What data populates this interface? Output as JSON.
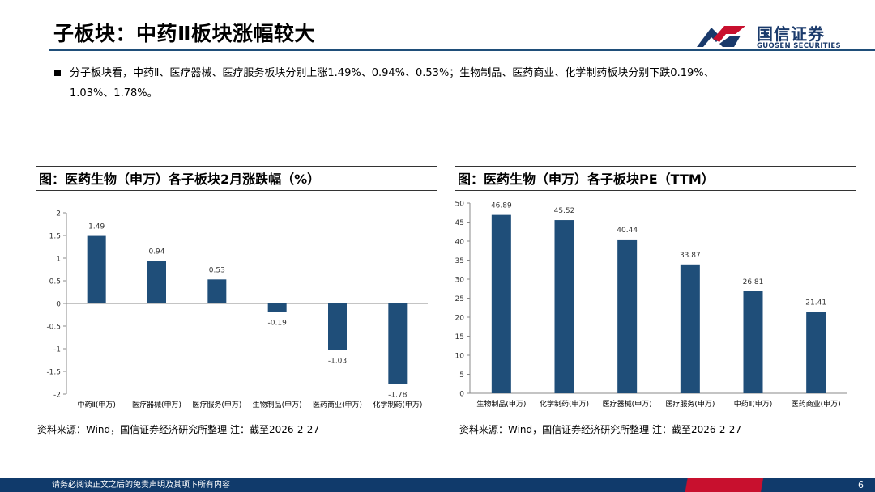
{
  "header": {
    "title": "子板块：中药Ⅱ板块涨幅较大",
    "logo_cn": "国信证券",
    "logo_en": "GUOSEN SECURITIES"
  },
  "summary": {
    "line1": "分子板块看，中药Ⅱ、医疗器械、医疗服务板块分别上涨1.49%、0.94%、0.53%；生物制品、医药商业、化学制药板块分别下跌0.19%、",
    "line2": "1.03%、1.78%。"
  },
  "left_panel": {
    "heading": "图：医药生物（申万）各子板块2月涨跌幅（%）",
    "source": "资料来源：Wind，国信证券经济研究所整理  注：截至2026-2-27"
  },
  "right_panel": {
    "heading": "图：医药生物（申万）各子板块PE（TTM）",
    "source": "资料来源：Wind，国信证券经济研究所整理  注：截至2026-2-27"
  },
  "footer": {
    "disclaimer": "请务必阅读正文之后的免责声明及其项下所有内容",
    "page": "6"
  },
  "colors": {
    "bar": "#1f4e79",
    "accent_red": "#c8102e",
    "navy": "#103a6b"
  },
  "chart_data": [
    {
      "type": "bar",
      "title": "医药生物（申万）各子板块2月涨跌幅（%）",
      "categories": [
        "中药Ⅱ(申万)",
        "医疗器械(申万)",
        "医疗服务(申万)",
        "生物制品(申万)",
        "医药商业(申万)",
        "化学制药(申万)"
      ],
      "values": [
        1.49,
        0.94,
        0.53,
        -0.19,
        -1.03,
        -1.78
      ],
      "value_labels": [
        "1.49",
        "0.94",
        "0.53",
        "-0.19",
        "-1.03",
        "-1.78"
      ],
      "yticks": [
        "2",
        "1.5",
        "1",
        "0.5",
        "0",
        "-0.5",
        "-1",
        "-1.5",
        "-2"
      ],
      "ytick_values": [
        2,
        1.5,
        1,
        0.5,
        0,
        -0.5,
        -1,
        -1.5,
        -2
      ],
      "ylim": [
        -2,
        2
      ],
      "xlabel": "",
      "ylabel": "",
      "grid": false
    },
    {
      "type": "bar",
      "title": "医药生物（申万）各子板块PE（TTM）",
      "categories": [
        "生物制品(申万)",
        "化学制药(申万)",
        "医疗器械(申万)",
        "医疗服务(申万)",
        "中药Ⅱ(申万)",
        "医药商业(申万)"
      ],
      "values": [
        46.89,
        45.52,
        40.44,
        33.87,
        26.81,
        21.41
      ],
      "value_labels": [
        "46.89",
        "45.52",
        "40.44",
        "33.87",
        "26.81",
        "21.41"
      ],
      "yticks": [
        "50",
        "45",
        "40",
        "35",
        "30",
        "25",
        "20",
        "15",
        "10",
        "5",
        "0"
      ],
      "ytick_values": [
        50,
        45,
        40,
        35,
        30,
        25,
        20,
        15,
        10,
        5,
        0
      ],
      "ylim": [
        0,
        50
      ],
      "xlabel": "",
      "ylabel": "",
      "grid": false
    }
  ]
}
